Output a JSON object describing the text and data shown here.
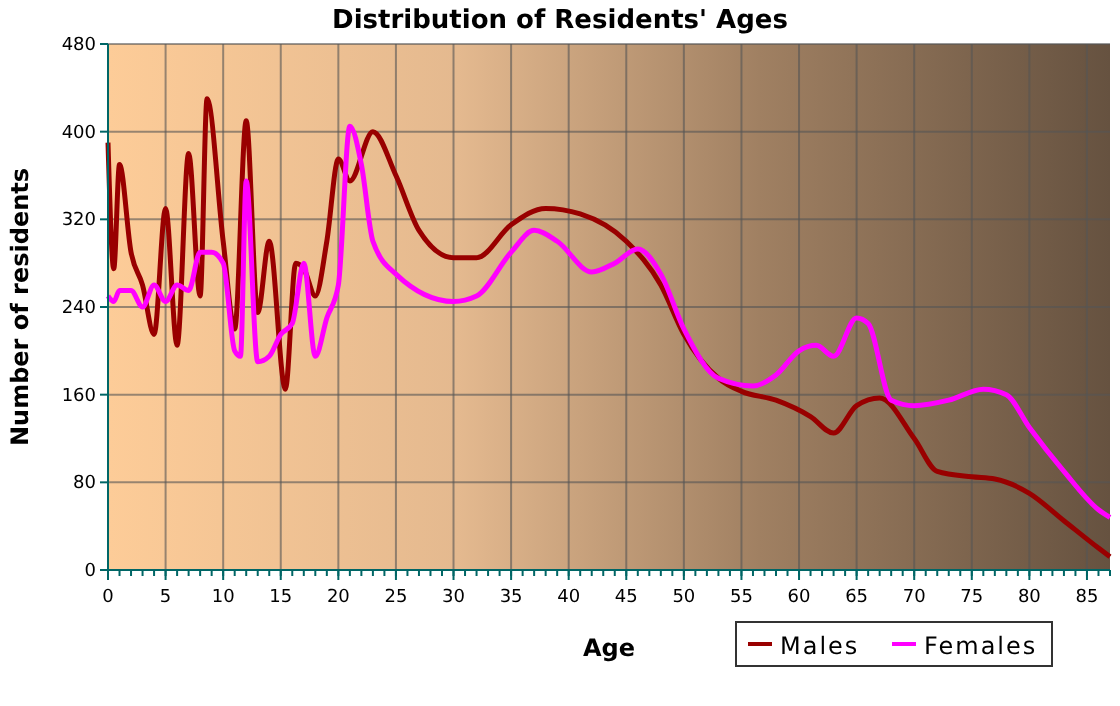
{
  "chart_data": {
    "type": "line",
    "title": "Distribution of Residents' Ages",
    "xlabel": "Age",
    "ylabel": "Number of residents",
    "xlim": [
      0,
      87
    ],
    "xticks": [
      0,
      5,
      10,
      15,
      20,
      25,
      30,
      35,
      40,
      45,
      50,
      55,
      60,
      65,
      70,
      75,
      80,
      85
    ],
    "ylim": [
      0,
      480
    ],
    "yticks": [
      0,
      80,
      160,
      240,
      320,
      400,
      480
    ],
    "grid": true,
    "legend": "bottom right",
    "marker": "none",
    "line_style": "solid",
    "series": [
      {
        "name": "Males",
        "color": "#990000",
        "x": [
          0,
          0.5,
          1,
          2,
          3,
          4,
          5,
          6,
          7,
          8,
          8.6,
          10,
          11,
          12,
          13,
          14,
          15.4,
          16.3,
          17,
          18,
          19,
          20,
          21,
          23,
          25,
          27,
          30,
          32,
          35,
          38,
          41,
          45,
          48,
          50,
          53,
          55,
          58,
          61,
          63,
          65,
          67,
          70,
          72,
          75,
          77,
          80,
          83,
          86,
          87
        ],
        "values": [
          390,
          275,
          370,
          290,
          260,
          215,
          330,
          205,
          380,
          250,
          430,
          300,
          220,
          410,
          235,
          300,
          165,
          280,
          275,
          250,
          300,
          375,
          355,
          400,
          360,
          310,
          285,
          285,
          315,
          330,
          325,
          300,
          260,
          215,
          175,
          163,
          155,
          140,
          125,
          150,
          157,
          120,
          90,
          85,
          83,
          70,
          45,
          20,
          12
        ]
      },
      {
        "name": "Females",
        "color": "#ff00ff",
        "x": [
          0,
          0.5,
          1,
          2,
          3,
          4,
          5,
          6,
          7,
          8,
          9,
          10,
          11,
          11.5,
          12,
          13,
          14,
          15,
          16,
          17,
          18,
          19,
          20,
          21,
          22,
          23,
          25,
          30,
          32,
          35,
          37,
          39,
          42,
          44,
          46,
          48,
          50,
          53,
          56,
          58,
          60,
          61.5,
          63,
          65,
          66,
          68,
          70,
          73,
          76,
          78,
          80,
          83,
          86,
          87
        ],
        "values": [
          250,
          245,
          255,
          255,
          240,
          260,
          245,
          260,
          255,
          290,
          290,
          280,
          200,
          195,
          355,
          190,
          195,
          215,
          225,
          280,
          195,
          230,
          260,
          405,
          370,
          300,
          270,
          245,
          250,
          290,
          310,
          300,
          272,
          280,
          293,
          270,
          220,
          175,
          168,
          178,
          200,
          205,
          195,
          230,
          225,
          155,
          150,
          155,
          165,
          160,
          130,
          90,
          55,
          48
        ]
      }
    ]
  }
}
